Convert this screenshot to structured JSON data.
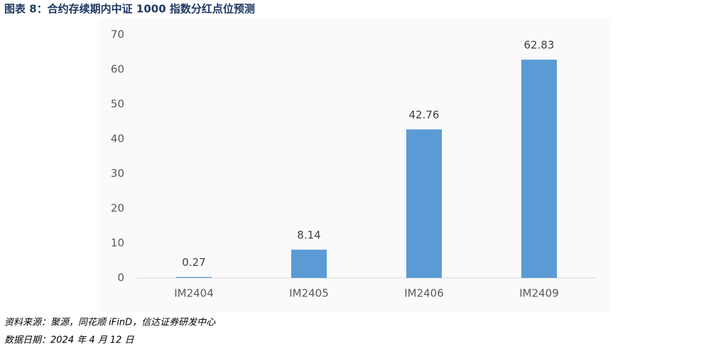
{
  "chart_data": {
    "type": "bar",
    "title": "图表 8：合约存续期内中证 1000 指数分红点位预测",
    "categories": [
      "IM2404",
      "IM2405",
      "IM2406",
      "IM2409"
    ],
    "values": [
      0.27,
      8.14,
      42.76,
      62.83
    ],
    "color": "#5b9bd5",
    "ylim": [
      0,
      70
    ],
    "yticks": [
      0,
      10,
      20,
      30,
      40,
      50,
      60,
      70
    ],
    "grid": false,
    "source": "资料来源：聚源，同花顺 iFinD，信达证券研发中心",
    "date": "数据日期：2024 年 4 月 12 日"
  }
}
